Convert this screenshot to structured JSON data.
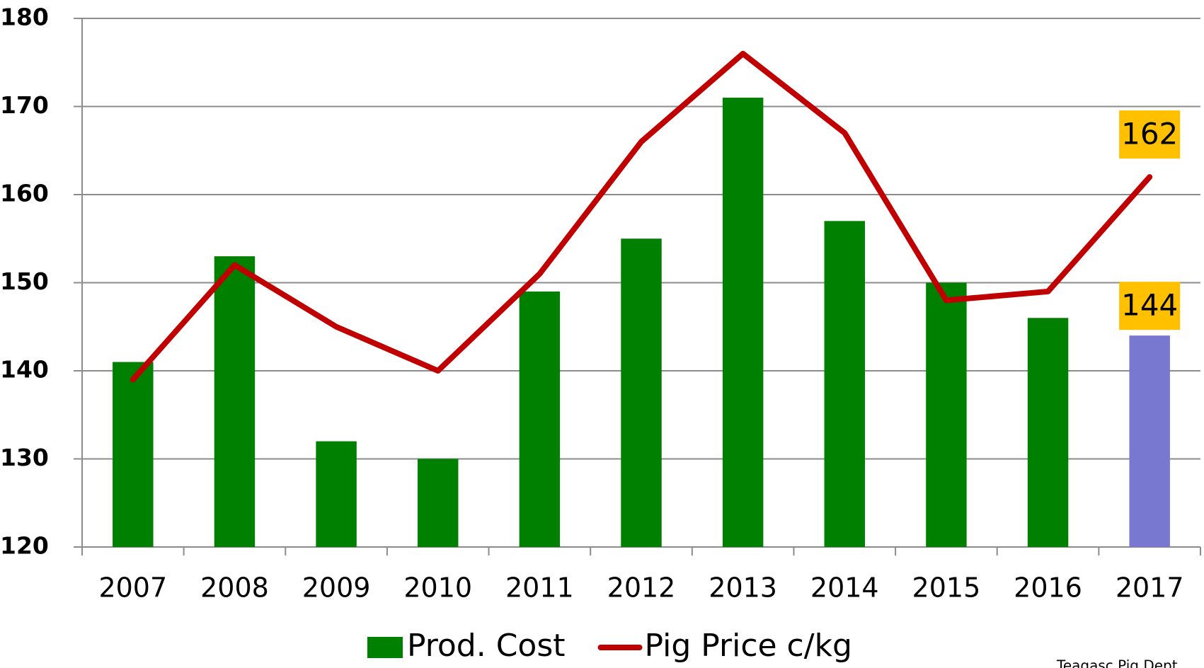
{
  "chart_data": {
    "type": "bar_line",
    "categories": [
      "2007",
      "2008",
      "2009",
      "2010",
      "2011",
      "2012",
      "2013",
      "2014",
      "2015",
      "2016",
      "2017"
    ],
    "series": [
      {
        "name": "Prod. Cost",
        "type": "bar",
        "color": "#008000",
        "colors": [
          "#008000",
          "#008000",
          "#008000",
          "#008000",
          "#008000",
          "#008000",
          "#008000",
          "#008000",
          "#008000",
          "#008000",
          "#7878d0"
        ],
        "values": [
          141,
          153,
          132,
          130,
          149,
          155,
          171,
          157,
          150,
          146,
          144
        ]
      },
      {
        "name": "Pig Price c/kg",
        "type": "line",
        "color": "#c00000",
        "values": [
          139,
          152,
          145,
          140,
          151,
          166,
          176,
          167,
          148,
          149,
          162
        ]
      }
    ],
    "data_labels": "last",
    "label_color": "#ffc000",
    "ylim": [
      120,
      180
    ],
    "yticks": [
      120,
      130,
      140,
      150,
      160,
      170,
      180
    ],
    "grid": true,
    "legend": "bottom",
    "source": "Teagasc Pig Dept"
  }
}
